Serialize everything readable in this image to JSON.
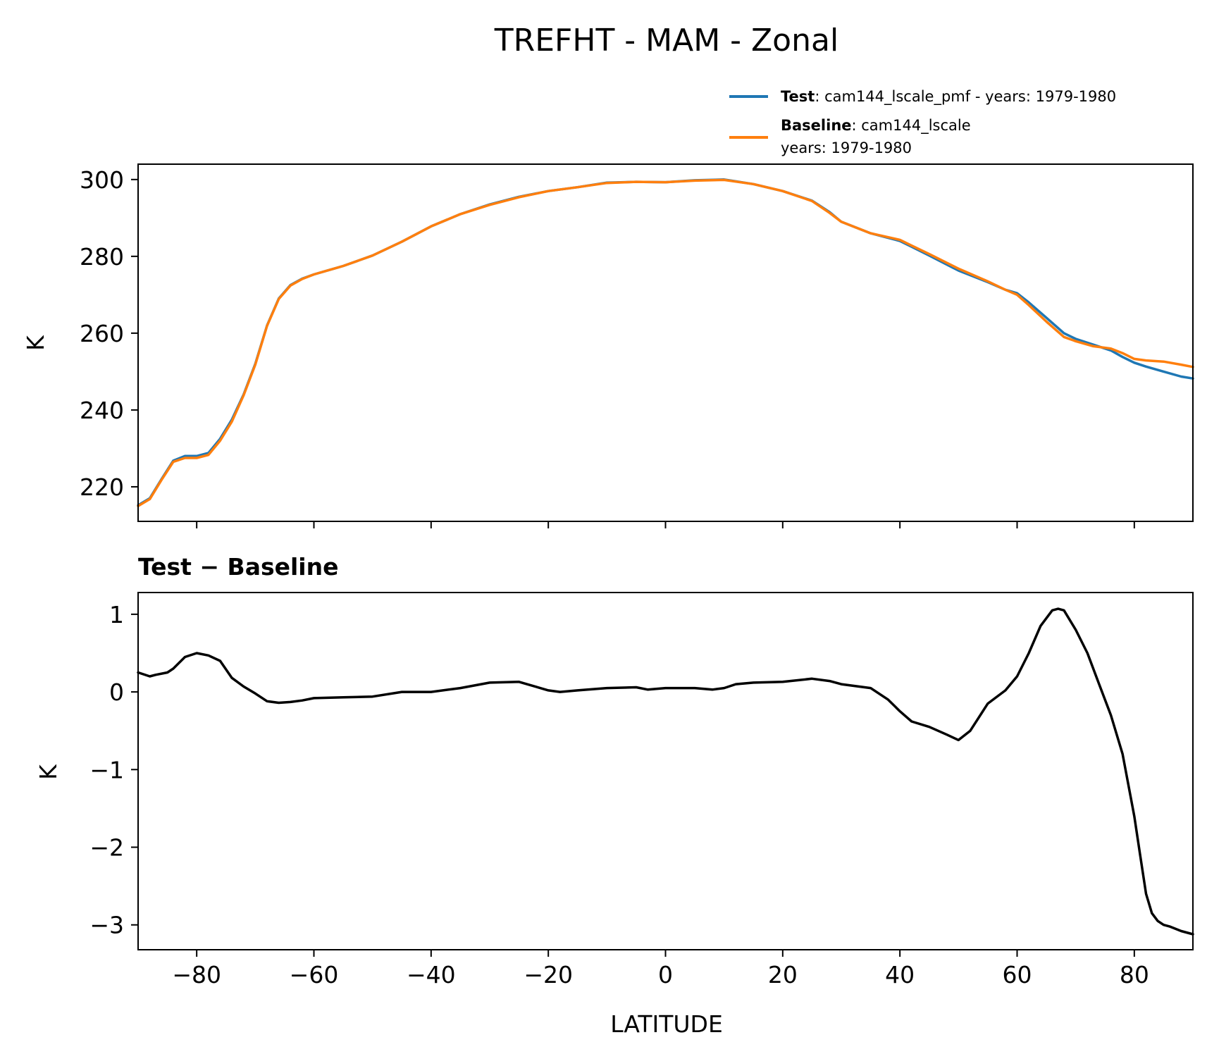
{
  "figure": {
    "title": "TREFHT - MAM - Zonal"
  },
  "chart_data": [
    {
      "type": "line",
      "title": "",
      "xlabel": "",
      "ylabel": "K",
      "xlim": [
        -90,
        90
      ],
      "ylim": [
        211,
        304
      ],
      "yticks": [
        220,
        240,
        260,
        280,
        300
      ],
      "xticks": [
        -80,
        -60,
        -40,
        -20,
        0,
        20,
        40,
        60,
        80
      ],
      "legend": {
        "position": "above-top-right",
        "entries": [
          {
            "name": "Test",
            "text_line1": ": cam144_lscale_pmf - years: 1979-1980",
            "text_line2": "",
            "color": "#1f77b4"
          },
          {
            "name": "Baseline",
            "text_line1": ": cam144_lscale",
            "text_line2": "years: 1979-1980",
            "color": "#ff7f0e"
          }
        ]
      },
      "series": [
        {
          "name": "Test",
          "color": "#1f77b4",
          "x": [
            -90,
            -88,
            -86,
            -84,
            -82,
            -80,
            -78,
            -76,
            -74,
            -72,
            -70,
            -68,
            -66,
            -64,
            -62,
            -60,
            -55,
            -50,
            -45,
            -40,
            -35,
            -30,
            -25,
            -20,
            -15,
            -10,
            -5,
            0,
            5,
            10,
            15,
            20,
            25,
            28,
            30,
            35,
            40,
            42,
            45,
            50,
            55,
            58,
            60,
            62,
            65,
            68,
            70,
            73,
            76,
            78,
            80,
            82,
            85,
            88,
            90
          ],
          "values": [
            215.2,
            217.0,
            222.0,
            226.8,
            228.0,
            228.0,
            228.8,
            232.5,
            237.5,
            244,
            252,
            262,
            269,
            272.5,
            274.2,
            275.3,
            277.5,
            280.2,
            283.8,
            287.8,
            291.0,
            293.5,
            295.5,
            297.0,
            298.0,
            299.2,
            299.4,
            299.3,
            299.8,
            300.0,
            298.8,
            297.0,
            294.5,
            291.5,
            289.0,
            286.0,
            284.0,
            282.5,
            280.2,
            276.3,
            273.3,
            271.3,
            270.4,
            268.0,
            264.0,
            260.0,
            258.5,
            257.0,
            255.5,
            253.8,
            252.3,
            251.3,
            250.0,
            248.7,
            248.2
          ]
        },
        {
          "name": "Baseline",
          "color": "#ff7f0e",
          "x": [
            -90,
            -88,
            -86,
            -84,
            -82,
            -80,
            -78,
            -76,
            -74,
            -72,
            -70,
            -68,
            -66,
            -64,
            -62,
            -60,
            -55,
            -50,
            -45,
            -40,
            -35,
            -30,
            -25,
            -20,
            -15,
            -10,
            -5,
            0,
            5,
            10,
            15,
            20,
            25,
            28,
            30,
            35,
            40,
            42,
            45,
            50,
            55,
            58,
            60,
            62,
            65,
            68,
            70,
            73,
            76,
            78,
            80,
            82,
            85,
            88,
            90
          ],
          "values": [
            215.0,
            216.8,
            221.8,
            226.5,
            227.5,
            227.5,
            228.3,
            232.0,
            237.0,
            243.8,
            251.8,
            261.9,
            268.9,
            272.4,
            274.1,
            275.3,
            277.5,
            280.2,
            283.8,
            287.8,
            291.0,
            293.4,
            295.4,
            297.0,
            298.0,
            299.1,
            299.4,
            299.3,
            299.7,
            299.9,
            298.8,
            297.0,
            294.4,
            291.3,
            289.0,
            286.0,
            284.3,
            282.8,
            280.6,
            276.8,
            273.5,
            271.3,
            270.0,
            267.3,
            263.0,
            259.0,
            257.9,
            256.6,
            256.0,
            254.8,
            253.3,
            252.9,
            252.6,
            251.8,
            251.2
          ]
        }
      ]
    },
    {
      "type": "line",
      "title": "Test − Baseline",
      "xlabel": "LATITUDE",
      "ylabel": "K",
      "xlim": [
        -90,
        90
      ],
      "ylim": [
        -3.32,
        1.28
      ],
      "yticks": [
        -3,
        -2,
        -1,
        0,
        1
      ],
      "xticks": [
        -80,
        -60,
        -40,
        -20,
        0,
        20,
        40,
        60,
        80
      ],
      "series": [
        {
          "name": "Test − Baseline",
          "color": "#000000",
          "x": [
            -90,
            -88,
            -87,
            -85,
            -84,
            -82,
            -80,
            -78,
            -76,
            -74,
            -72,
            -70,
            -68,
            -66,
            -64,
            -62,
            -60,
            -55,
            -50,
            -45,
            -40,
            -35,
            -30,
            -25,
            -20,
            -18,
            -15,
            -10,
            -5,
            -3,
            0,
            3,
            5,
            8,
            10,
            12,
            15,
            20,
            25,
            28,
            30,
            35,
            38,
            40,
            42,
            45,
            48,
            50,
            52,
            55,
            58,
            60,
            62,
            64,
            66,
            67,
            68,
            70,
            72,
            74,
            76,
            78,
            80,
            81,
            82,
            83,
            84,
            85,
            86,
            88,
            90
          ],
          "values": [
            0.25,
            0.2,
            0.22,
            0.25,
            0.3,
            0.45,
            0.5,
            0.47,
            0.4,
            0.18,
            0.07,
            -0.02,
            -0.12,
            -0.14,
            -0.13,
            -0.11,
            -0.08,
            -0.07,
            -0.06,
            0.0,
            0.0,
            0.05,
            0.12,
            0.13,
            0.02,
            0.0,
            0.02,
            0.05,
            0.06,
            0.03,
            0.05,
            0.05,
            0.05,
            0.03,
            0.05,
            0.1,
            0.12,
            0.13,
            0.17,
            0.14,
            0.1,
            0.05,
            -0.1,
            -0.25,
            -0.38,
            -0.45,
            -0.55,
            -0.62,
            -0.5,
            -0.15,
            0.02,
            0.2,
            0.5,
            0.85,
            1.05,
            1.07,
            1.05,
            0.8,
            0.5,
            0.1,
            -0.3,
            -0.8,
            -1.6,
            -2.1,
            -2.6,
            -2.85,
            -2.95,
            -3.0,
            -3.02,
            -3.08,
            -3.12
          ]
        }
      ]
    }
  ]
}
